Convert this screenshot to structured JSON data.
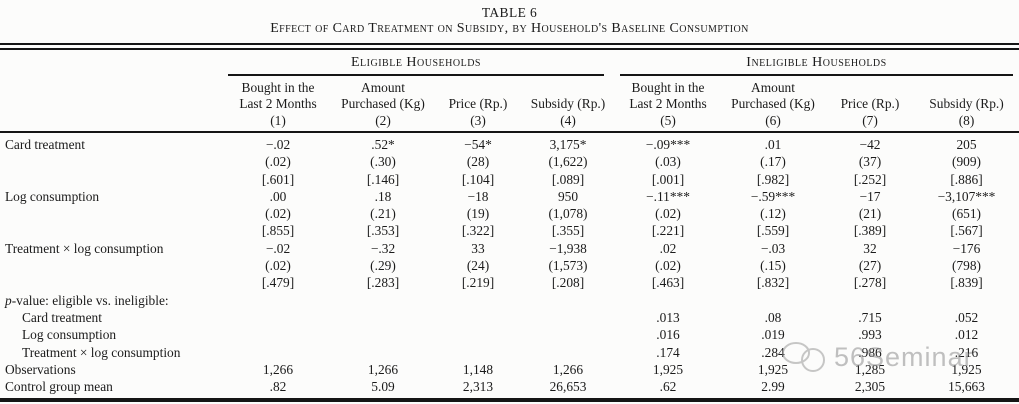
{
  "title": {
    "line1": "TABLE 6",
    "line2": "Effect of Card Treatment on Subsidy, by Household's Baseline Consumption"
  },
  "table": {
    "groups": [
      {
        "label": "Eligible Households",
        "span": 4
      },
      {
        "label": "Ineligible Households",
        "span": 4
      }
    ],
    "columns": [
      {
        "label": "Bought in the\nLast 2 Months",
        "num": "(1)"
      },
      {
        "label": "Amount\nPurchased (Kg)",
        "num": "(2)"
      },
      {
        "label": "Price (Rp.)",
        "num": "(3)"
      },
      {
        "label": "Subsidy (Rp.)",
        "num": "(4)"
      },
      {
        "label": "Bought in the\nLast 2 Months",
        "num": "(5)"
      },
      {
        "label": "Amount\nPurchased (Kg)",
        "num": "(6)"
      },
      {
        "label": "Price (Rp.)",
        "num": "(7)"
      },
      {
        "label": "Subsidy (Rp.)",
        "num": "(8)"
      }
    ],
    "rows": [
      {
        "label": "Card treatment",
        "values": [
          "−.02",
          ".52*",
          "−54*",
          "3,175*",
          "−.09***",
          ".01",
          "−42",
          "205"
        ],
        "se": [
          "(.02)",
          "(.30)",
          "(28)",
          "(1,622)",
          "(.03)",
          "(.17)",
          "(37)",
          "(909)"
        ],
        "pq": [
          "[.601]",
          "[.146]",
          "[.104]",
          "[.089]",
          "[.001]",
          "[.982]",
          "[.252]",
          "[.886]"
        ]
      },
      {
        "label": "Log consumption",
        "values": [
          ".00",
          ".18",
          "−18",
          "950",
          "−.11***",
          "−.59***",
          "−17",
          "−3,107***"
        ],
        "se": [
          "(.02)",
          "(.21)",
          "(19)",
          "(1,078)",
          "(.02)",
          "(.12)",
          "(21)",
          "(651)"
        ],
        "pq": [
          "[.855]",
          "[.353]",
          "[.322]",
          "[.355]",
          "[.221]",
          "[.559]",
          "[.389]",
          "[.567]"
        ]
      },
      {
        "label": "Treatment × log consumption",
        "values": [
          "−.02",
          "−.32",
          "33",
          "−1,938",
          ".02",
          "−.03",
          "32",
          "−176"
        ],
        "se": [
          "(.02)",
          "(.29)",
          "(24)",
          "(1,573)",
          "(.02)",
          "(.15)",
          "(27)",
          "(798)"
        ],
        "pq": [
          "[.479]",
          "[.283]",
          "[.219]",
          "[.208]",
          "[.463]",
          "[.832]",
          "[.278]",
          "[.839]"
        ]
      },
      {
        "label_italic_prefix": "p",
        "label": "-value: eligible vs. ineligible:",
        "section": true,
        "values": [
          "",
          "",
          "",
          "",
          "",
          "",
          "",
          ""
        ]
      },
      {
        "label": "Card treatment",
        "indent": true,
        "values": [
          "",
          "",
          "",
          "",
          ".013",
          ".08",
          ".715",
          ".052"
        ]
      },
      {
        "label": "Log consumption",
        "indent": true,
        "values": [
          "",
          "",
          "",
          "",
          ".016",
          ".019",
          ".993",
          ".012"
        ]
      },
      {
        "label": "Treatment × log consumption",
        "indent": true,
        "values": [
          "",
          "",
          "",
          "",
          ".174",
          ".284",
          ".986",
          ".216"
        ]
      },
      {
        "label": "Observations",
        "values": [
          "1,266",
          "1,266",
          "1,148",
          "1,266",
          "1,925",
          "1,925",
          "1,285",
          "1,925"
        ]
      },
      {
        "label": "Control group mean",
        "values": [
          ".82",
          "5.09",
          "2,313",
          "26,653",
          ".62",
          "2.99",
          "2,305",
          "15,663"
        ]
      }
    ]
  },
  "watermark": {
    "text": "56Seminar",
    "icon": "chat-bubbles-icon",
    "color": "#8f8f8f"
  }
}
